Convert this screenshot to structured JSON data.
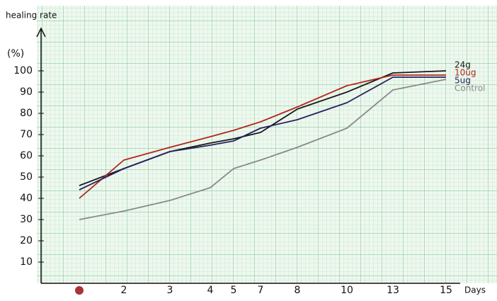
{
  "chart_data": {
    "type": "line",
    "y_label": "healing rate",
    "y_unit": "(%)",
    "x_label": "Days",
    "categories": [
      null,
      "2",
      "3",
      "4",
      "5",
      "7",
      "8",
      "10",
      "13",
      "15"
    ],
    "series": [
      {
        "name": "24g",
        "color": "#1a1a1a",
        "values": [
          46,
          54,
          62,
          66,
          68,
          71,
          82,
          90,
          99,
          100
        ]
      },
      {
        "name": "10ug",
        "color": "#b3261e",
        "values": [
          40,
          58,
          64,
          69,
          72,
          76,
          83,
          93,
          98,
          98
        ]
      },
      {
        "name": "5ug",
        "color": "#2b2060",
        "values": [
          44,
          54,
          62,
          65,
          67,
          73,
          77,
          85,
          97,
          97
        ]
      },
      {
        "name": "Control",
        "color": "#8a8a8a",
        "values": [
          30,
          34,
          39,
          45,
          54,
          58,
          64,
          73,
          91,
          96
        ]
      }
    ],
    "ylim": [
      0,
      100
    ],
    "yticks": [
      10,
      20,
      30,
      40,
      50,
      60,
      70,
      80,
      90,
      100
    ],
    "grid": true
  }
}
